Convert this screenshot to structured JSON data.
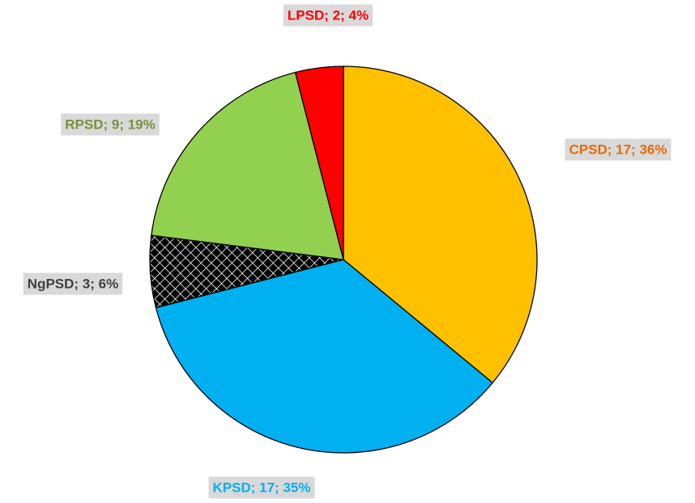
{
  "chart_data": {
    "type": "pie",
    "values": [
      36,
      35,
      6,
      19,
      4
    ],
    "value_labels": [
      "CPSD; 17; 36%",
      "KPSD; 17; 35%",
      "NgPSD; 3; 6%",
      "RPSD; 9; 19%",
      "LPSD; 2; 4%"
    ],
    "colors": [
      "#ffc000",
      "#00b0f0",
      "#000000",
      "#92d050",
      "#ff0000"
    ],
    "patterns": [
      null,
      null,
      "crosshatch",
      null,
      null
    ],
    "label_colors": [
      "#e46c0a",
      "#00b0f0",
      "#404040",
      "#77933c",
      "#ff0000"
    ],
    "start_angle": 0,
    "direction": "clockwise"
  }
}
